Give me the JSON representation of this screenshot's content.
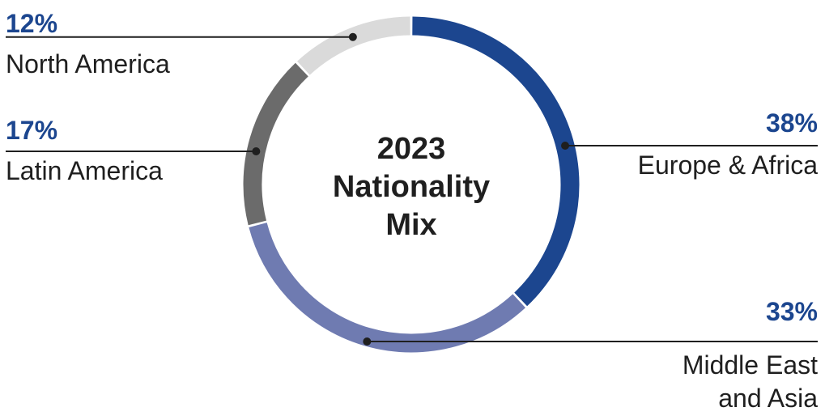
{
  "chart_data": {
    "type": "pie",
    "title": [
      "2023",
      "Nationality",
      "Mix"
    ],
    "slices": [
      {
        "label": [
          "Europe & Africa"
        ],
        "value": 38,
        "value_label": "38%",
        "color": "#1c468f"
      },
      {
        "label": [
          "Middle East",
          "and Asia"
        ],
        "value": 33,
        "value_label": "33%",
        "color": "#6f7bb1"
      },
      {
        "label": [
          "Latin America"
        ],
        "value": 17,
        "value_label": "17%",
        "color": "#6b6b6b"
      },
      {
        "label": [
          "North America"
        ],
        "value": 12,
        "value_label": "12%",
        "color": "#dadada"
      }
    ]
  }
}
